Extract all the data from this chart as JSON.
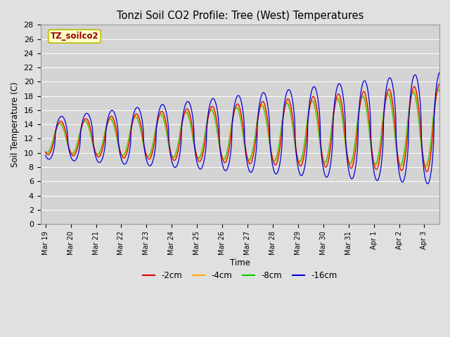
{
  "title": "Tonzi Soil CO2 Profile: Tree (West) Temperatures",
  "ylabel": "Soil Temperature (C)",
  "xlabel": "Time",
  "legend_label": "TZ_soilco2",
  "series_labels": [
    "-2cm",
    "-4cm",
    "-8cm",
    "-16cm"
  ],
  "series_colors": [
    "#dd0000",
    "#ffaa00",
    "#00cc00",
    "#0000dd"
  ],
  "ylim": [
    0,
    28
  ],
  "yticks": [
    0,
    2,
    4,
    6,
    8,
    10,
    12,
    14,
    16,
    18,
    20,
    22,
    24,
    26,
    28
  ],
  "background_color": "#e0e0e0",
  "plot_bg_color": "#d4d4d4",
  "tick_labels": [
    "Mar 19",
    "Mar 20",
    "Mar 21",
    "Mar 22",
    "Mar 23",
    "Mar 24",
    "Mar 25",
    "Mar 26",
    "Mar 27",
    "Mar 28",
    "Mar 29",
    "Mar 30",
    "Mar 31",
    "Apr 1",
    "Apr 2",
    "Apr 3"
  ]
}
